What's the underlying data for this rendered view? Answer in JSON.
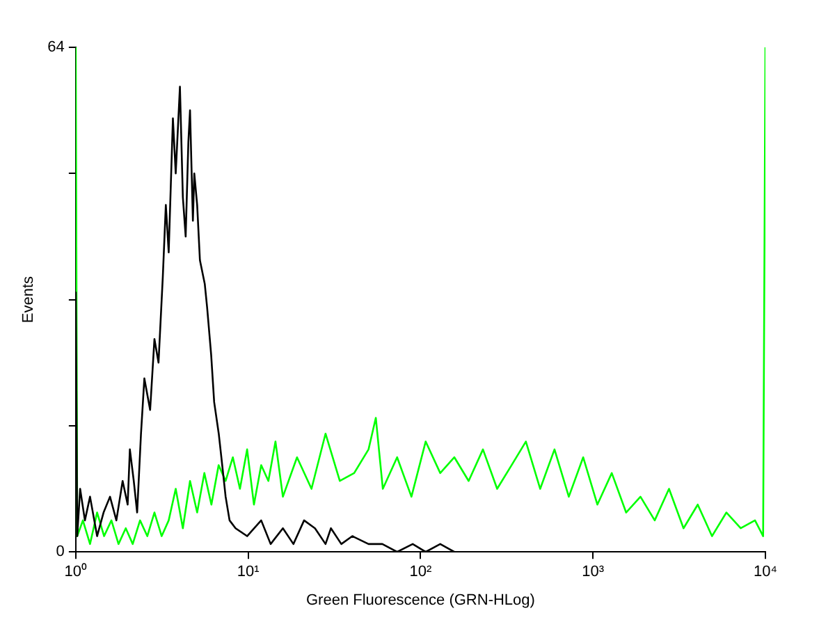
{
  "chart_data": {
    "type": "line",
    "xlabel": "Green Fluorescence (GRN-HLog)",
    "ylabel": "Events",
    "log": "x",
    "grid": false,
    "legend": false,
    "marker": "none",
    "line_style": "solid",
    "xlim": [
      1,
      10000
    ],
    "xticks": [
      {
        "value": 1,
        "label": "10⁰"
      },
      {
        "value": 10,
        "label": "10¹"
      },
      {
        "value": 100,
        "label": "10²"
      },
      {
        "value": 1000,
        "label": "10³"
      },
      {
        "value": 10000,
        "label": "10⁴"
      }
    ],
    "ylim": [
      0,
      64
    ],
    "yticks": [
      0,
      {
        "value": 16,
        "label": null
      },
      {
        "value": 32,
        "label": null
      },
      {
        "value": 48,
        "label": null
      },
      64
    ],
    "series": [
      {
        "color": "#000000",
        "x": [
          1,
          1.02,
          1.06,
          1.13,
          1.21,
          1.33,
          1.45,
          1.58,
          1.72,
          1.87,
          2.0,
          2.06,
          2.17,
          2.27,
          2.39,
          2.5,
          2.7,
          2.86,
          3.02,
          3.2,
          3.33,
          3.46,
          3.66,
          3.8,
          4.02,
          4.18,
          4.34,
          4.5,
          4.6,
          4.78,
          4.87,
          5.06,
          5.25,
          5.6,
          5.78,
          6.1,
          6.35,
          6.75,
          6.99,
          7.4,
          7.8,
          8.45,
          9.86,
          11.9,
          13.5,
          15.9,
          18.3,
          21.1,
          24.4,
          28.1,
          30.2,
          34.7,
          40.2,
          49.9,
          60.0,
          73.1,
          90.0,
          107,
          130,
          157,
          200,
          277,
          400,
          718,
          1000,
          1865,
          5000,
          9900
        ],
        "values": [
          33,
          2,
          8,
          4,
          7,
          2,
          5,
          7,
          4,
          9,
          6,
          13,
          9,
          5,
          15,
          22,
          18,
          27,
          24,
          35,
          44,
          38,
          55,
          48,
          59,
          45,
          40,
          52,
          56,
          42,
          48,
          44,
          37,
          34,
          31,
          25,
          19,
          15,
          12,
          7,
          4,
          3,
          2,
          4,
          1,
          3,
          1,
          4,
          3,
          1,
          3,
          1,
          2,
          1,
          1,
          0,
          1,
          0,
          1,
          0,
          0,
          0,
          0,
          0,
          0,
          0,
          0,
          0
        ]
      },
      {
        "color": "#00ff00",
        "x": [
          1,
          1.02,
          1.1,
          1.21,
          1.33,
          1.46,
          1.61,
          1.77,
          1.95,
          2.14,
          2.36,
          2.6,
          2.86,
          3.15,
          3.46,
          3.8,
          4.18,
          4.6,
          5.06,
          5.57,
          6.12,
          6.74,
          7.4,
          8.15,
          8.96,
          9.86,
          10.8,
          11.9,
          13.1,
          14.4,
          15.9,
          19.2,
          23.3,
          28.1,
          34.0,
          41.2,
          49.9,
          55.0,
          60.4,
          73.1,
          88.5,
          107,
          130,
          157,
          190,
          230,
          278,
          337,
          408,
          494,
          598,
          724,
          877,
          1060,
          1285,
          1556,
          1885,
          2280,
          2760,
          3350,
          4050,
          4900,
          5940,
          7190,
          8700,
          9700,
          10000
        ],
        "values": [
          64,
          2,
          4,
          1,
          5,
          2,
          4,
          1,
          3,
          1,
          4,
          2,
          5,
          2,
          4,
          8,
          3,
          9,
          5,
          10,
          6,
          11,
          9,
          12,
          8,
          13,
          6,
          11,
          9,
          14,
          7,
          12,
          8,
          15,
          9,
          10,
          13,
          17,
          8,
          12,
          7,
          14,
          10,
          12,
          9,
          13,
          8,
          11,
          14,
          8,
          13,
          7,
          12,
          6,
          10,
          5,
          7,
          4,
          8,
          3,
          6,
          2,
          5,
          3,
          4,
          2,
          64
        ]
      }
    ]
  }
}
